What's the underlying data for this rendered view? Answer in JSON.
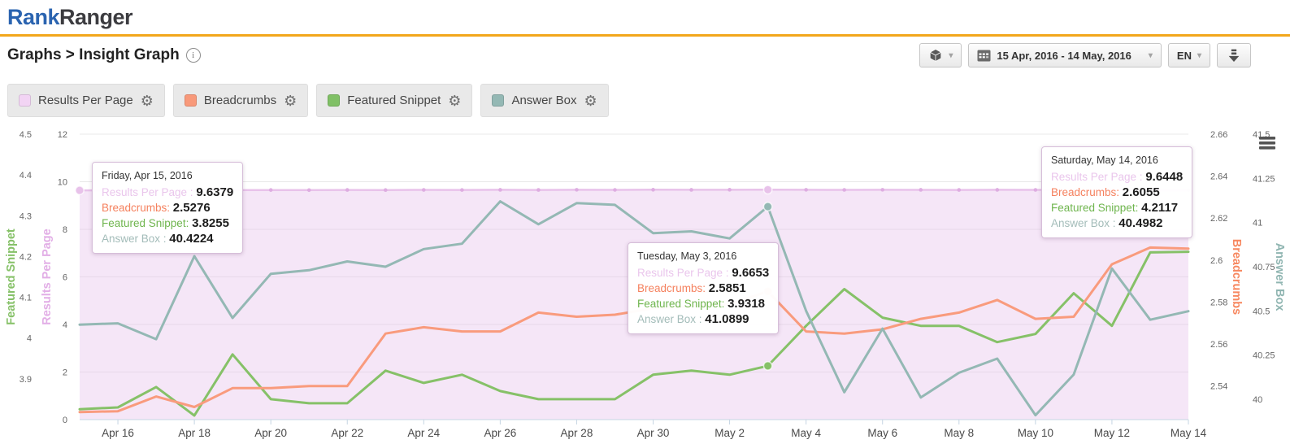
{
  "header": {
    "logo_part1": "Rank",
    "logo_part2": "Ranger"
  },
  "breadcrumb": {
    "text": "Graphs > Insight Graph",
    "info_glyph": "i"
  },
  "toolbar": {
    "date_range": "15 Apr, 2016 - 14 May, 2016",
    "language": "EN",
    "caret": "▾"
  },
  "legend": [
    {
      "label": "Results Per Page",
      "color": "#f2d4f4",
      "gear": "⚙"
    },
    {
      "label": "Breadcrumbs",
      "color": "#f8997a",
      "gear": "⚙"
    },
    {
      "label": "Featured Snippet",
      "color": "#80c066",
      "gear": "⚙"
    },
    {
      "label": "Answer Box",
      "color": "#94b8b4",
      "gear": "⚙"
    }
  ],
  "chart_data": {
    "type": "line",
    "title": "",
    "grid": true,
    "dates": [
      "Apr 15",
      "Apr 16",
      "Apr 17",
      "Apr 18",
      "Apr 19",
      "Apr 20",
      "Apr 21",
      "Apr 22",
      "Apr 23",
      "Apr 24",
      "Apr 25",
      "Apr 26",
      "Apr 27",
      "Apr 28",
      "Apr 29",
      "Apr 30",
      "May 1",
      "May 2",
      "May 3",
      "May 4",
      "May 5",
      "May 6",
      "May 7",
      "May 8",
      "May 9",
      "May 10",
      "May 11",
      "May 12",
      "May 13",
      "May 14"
    ],
    "axes": {
      "fs": {
        "title": "Featured Snippet",
        "color": "#86c168",
        "min": 3.8,
        "max": 4.5,
        "tick_labels": [
          "4.5",
          "4.4",
          "4.3",
          "4.2",
          "4.1",
          "4",
          "3.9"
        ]
      },
      "rpp": {
        "title": "Results Per Page",
        "color": "#e2aee6",
        "min": 0,
        "max": 12,
        "tick_labels": [
          "12",
          "10",
          "8",
          "6",
          "4",
          "2",
          "0"
        ]
      },
      "bc": {
        "title": "Breadcrumbs",
        "color": "#f78860",
        "min": 2.524,
        "max": 2.66,
        "tick_labels": [
          "2.66",
          "2.64",
          "2.62",
          "2.6",
          "2.58",
          "2.56",
          "2.54"
        ]
      },
      "ab": {
        "title": "Answer Box",
        "color": "#8fb5b1",
        "min": 39.885,
        "max": 41.5,
        "tick_labels": [
          "41.5",
          "41.25",
          "41",
          "40.75",
          "40.5",
          "40.25",
          "40"
        ]
      }
    },
    "series": [
      {
        "key": "rpp",
        "name": "Results Per Page",
        "axis": "rpp",
        "color": "#e8c2ea",
        "marker_color": "#deade1",
        "label_color": "#eac6ec",
        "area": true,
        "area_fill": "rgba(231,192,234,0.40)",
        "width": 2.5,
        "values": [
          9.6379,
          9.645,
          9.648,
          9.643,
          9.65,
          9.652,
          9.648,
          9.655,
          9.651,
          9.657,
          9.654,
          9.66,
          9.656,
          9.662,
          9.658,
          9.664,
          9.66,
          9.663,
          9.6653,
          9.661,
          9.658,
          9.662,
          9.659,
          9.656,
          9.66,
          9.657,
          9.653,
          9.65,
          9.647,
          9.6448
        ]
      },
      {
        "key": "fs",
        "name": "Featured Snippet",
        "axis": "fs",
        "color": "#86c168",
        "label_color": "#6fb54e",
        "width": 3,
        "values": [
          3.8255,
          3.83,
          3.88,
          3.81,
          3.96,
          3.85,
          3.84,
          3.84,
          3.92,
          3.89,
          3.91,
          3.87,
          3.85,
          3.85,
          3.85,
          3.91,
          3.92,
          3.91,
          3.9318,
          4.03,
          4.12,
          4.05,
          4.03,
          4.03,
          3.99,
          4.01,
          4.11,
          4.03,
          4.21,
          4.2117
        ]
      },
      {
        "key": "bc",
        "name": "Breadcrumbs",
        "axis": "bc",
        "color": "#f99b7d",
        "label_color": "#f5815e",
        "width": 3,
        "values": [
          2.5276,
          2.528,
          2.535,
          2.53,
          2.539,
          2.539,
          2.54,
          2.54,
          2.565,
          2.568,
          2.566,
          2.566,
          2.575,
          2.573,
          2.574,
          2.577,
          2.578,
          2.579,
          2.5851,
          2.566,
          2.565,
          2.567,
          2.572,
          2.575,
          2.581,
          2.572,
          2.573,
          2.598,
          2.606,
          2.6055
        ]
      },
      {
        "key": "ab",
        "name": "Answer Box",
        "axis": "ab",
        "color": "#94b8b4",
        "label_color": "#a3bcb9",
        "width": 3,
        "values": [
          40.4224,
          40.43,
          40.34,
          40.81,
          40.46,
          40.71,
          40.73,
          40.78,
          40.75,
          40.85,
          40.88,
          41.12,
          40.99,
          41.11,
          41.1,
          40.94,
          40.95,
          40.91,
          41.0899,
          40.5,
          40.04,
          40.4,
          40.01,
          40.15,
          40.23,
          39.91,
          40.14,
          40.74,
          40.45,
          40.4982
        ]
      }
    ],
    "highlight_points": [
      {
        "index": 0,
        "series": [
          "rpp"
        ]
      },
      {
        "index": 18,
        "series": [
          "rpp",
          "bc",
          "fs",
          "ab"
        ]
      }
    ],
    "tooltips": [
      {
        "title": "Friday, Apr 15, 2016",
        "rows": [
          {
            "series": "rpp",
            "label": "Results Per Page : ",
            "value": "9.6379"
          },
          {
            "series": "bc",
            "label": "Breadcrumbs: ",
            "value": "2.5276"
          },
          {
            "series": "fs",
            "label": "Featured Snippet: ",
            "value": "3.8255"
          },
          {
            "series": "ab",
            "label": "Answer Box : ",
            "value": "40.4224"
          }
        ]
      },
      {
        "title": "Tuesday, May 3, 2016",
        "rows": [
          {
            "series": "rpp",
            "label": "Results Per Page : ",
            "value": "9.6653"
          },
          {
            "series": "bc",
            "label": "Breadcrumbs: ",
            "value": "2.5851"
          },
          {
            "series": "fs",
            "label": "Featured Snippet: ",
            "value": "3.9318"
          },
          {
            "series": "ab",
            "label": "Answer Box : ",
            "value": "41.0899"
          }
        ]
      },
      {
        "title": "Saturday, May 14, 2016",
        "rows": [
          {
            "series": "rpp",
            "label": "Results Per Page : ",
            "value": "9.6448"
          },
          {
            "series": "bc",
            "label": "Breadcrumbs: ",
            "value": "2.6055"
          },
          {
            "series": "fs",
            "label": "Featured Snippet: ",
            "value": "4.2117"
          },
          {
            "series": "ab",
            "label": "Answer Box : ",
            "value": "40.4982"
          }
        ]
      }
    ]
  }
}
